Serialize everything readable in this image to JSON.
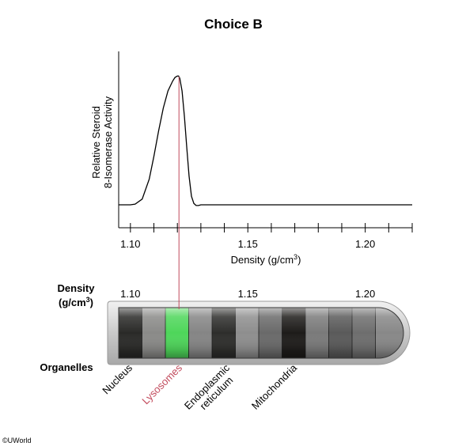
{
  "title": "Choice B",
  "chart_data": {
    "type": "line",
    "title": "Choice B",
    "xlabel_main": "Density (g/cm",
    "xlabel_sup": "3",
    "xlabel_close": ")",
    "ylabel_line1": "Relative Steroid",
    "ylabel_line2": "8-Isomerase Activity",
    "xlim": [
      1.095,
      1.22
    ],
    "ylim": [
      0,
      1
    ],
    "x_ticks": [
      1.1,
      1.11,
      1.12,
      1.13,
      1.14,
      1.15,
      1.16,
      1.17,
      1.18,
      1.19,
      1.2,
      1.21,
      1.22
    ],
    "x_tick_labels": [
      {
        "x": 1.1,
        "label": "1.10"
      },
      {
        "x": 1.15,
        "label": "1.15"
      },
      {
        "x": 1.2,
        "label": "1.20"
      }
    ],
    "baseline": 0.08,
    "peak": {
      "x": 1.12,
      "y": 0.98
    },
    "series": [
      {
        "x": [
          1.095,
          1.1,
          1.102,
          1.105,
          1.108,
          1.11,
          1.112,
          1.114,
          1.116,
          1.118,
          1.119,
          1.12,
          1.1205,
          1.121,
          1.122,
          1.123,
          1.124,
          1.125,
          1.126,
          1.127,
          1.128,
          1.129,
          1.13,
          1.14,
          1.15,
          1.16,
          1.17,
          1.18,
          1.19,
          1.2,
          1.21,
          1.22
        ],
        "values": [
          0.08,
          0.08,
          0.085,
          0.12,
          0.26,
          0.42,
          0.6,
          0.76,
          0.88,
          0.95,
          0.975,
          0.985,
          0.985,
          0.97,
          0.88,
          0.7,
          0.48,
          0.28,
          0.14,
          0.09,
          0.075,
          0.075,
          0.08,
          0.08,
          0.08,
          0.08,
          0.08,
          0.08,
          0.08,
          0.08,
          0.08,
          0.08
        ]
      }
    ],
    "marker_line_color": "#c24a5c"
  },
  "tube": {
    "density_label_line1": "Density",
    "density_label_line2": "(g/cm",
    "density_label_sup": "3",
    "density_label_close": ")",
    "scale_labels": [
      {
        "x": 1.1,
        "label": "1.10"
      },
      {
        "x": 1.15,
        "label": "1.15"
      },
      {
        "x": 1.2,
        "label": "1.20"
      }
    ],
    "bands": [
      {
        "shade": "#2a2a28"
      },
      {
        "shade": "#8a8a88"
      },
      {
        "shade": "#4ed65a"
      },
      {
        "shade": "#858585"
      },
      {
        "shade": "#2e2e2c"
      },
      {
        "shade": "#8e8e8e"
      },
      {
        "shade": "#6a6a6a"
      },
      {
        "shade": "#1e1c1a"
      },
      {
        "shade": "#7a7a7a"
      },
      {
        "shade": "#5a5a5a"
      },
      {
        "shade": "#6e6e6e"
      },
      {
        "shade": "#888888"
      }
    ],
    "highlight_color": "#4ed65a"
  },
  "organelles_label": "Organelles",
  "organelles": [
    {
      "line1": "Nucleus",
      "line2": "",
      "color": "#000000",
      "highlighted": false
    },
    {
      "line1": "Lysosomes",
      "line2": "",
      "color": "#c24a5c",
      "highlighted": true
    },
    {
      "line1": "Endoplasmic",
      "line2": "reticulum",
      "color": "#000000",
      "highlighted": false
    },
    {
      "line1": "Mitochondria",
      "line2": "",
      "color": "#000000",
      "highlighted": false
    }
  ],
  "copyright": "©UWorld"
}
